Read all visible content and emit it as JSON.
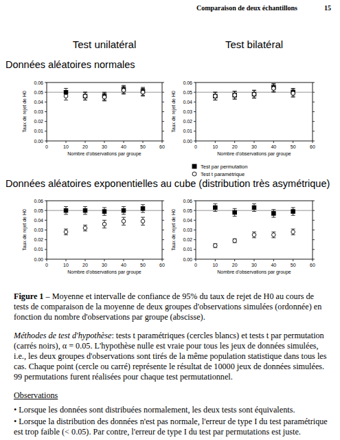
{
  "header": {
    "title": "Comparaison de deux échantillons",
    "page": "15"
  },
  "column_titles": [
    "Test unilatéral",
    "Test bilatéral"
  ],
  "section_titles": [
    "Données aléatoires normales",
    "Données aléatoires exponentielles au cube (distribution très asymétrique)"
  ],
  "chart_data": [
    {
      "type": "scatter",
      "x_label": "Nombre d'observations par groupe",
      "y_label": "Taux de rejet de H0",
      "x": [
        10,
        20,
        30,
        40,
        50
      ],
      "xlim": [
        0,
        60
      ],
      "xticks": [
        0,
        10,
        20,
        30,
        40,
        50,
        60
      ],
      "ylim": [
        0,
        0.06
      ],
      "yticks": [
        {
          "value": 0,
          "label": "0.00"
        },
        {
          "value": 0.01,
          "label": "0.01"
        },
        {
          "value": 0.02,
          "label": "0.02"
        },
        {
          "value": 0.03,
          "label": "0.03"
        },
        {
          "value": 0.04,
          "label": "0.04"
        },
        {
          "value": 0.05,
          "label": "0.05"
        },
        {
          "value": 0.06,
          "label": "0.06"
        }
      ],
      "reference_line": 0.05,
      "series": [
        {
          "name": "Test par permutation",
          "color": "#000000",
          "marker": "square",
          "values": [
            0.05,
            0.046,
            0.046,
            0.053,
            0.051
          ],
          "error": [
            0.004,
            0.004,
            0.004,
            0.004,
            0.004
          ]
        },
        {
          "name": "Test t paramétrique",
          "color": "#ffffff",
          "marker": "circle",
          "values": [
            0.046,
            0.046,
            0.045,
            0.052,
            0.05
          ],
          "error": [
            0.004,
            0.004,
            0.004,
            0.004,
            0.004
          ]
        }
      ]
    },
    {
      "type": "scatter",
      "x_label": "Nombre d'observations par groupe",
      "y_label": "Taux de rejet de H0",
      "x": [
        10,
        20,
        30,
        40,
        50
      ],
      "xlim": [
        0,
        60
      ],
      "xticks": [
        0,
        10,
        20,
        30,
        40,
        50,
        60
      ],
      "ylim": [
        0,
        0.06
      ],
      "yticks": [
        {
          "value": 0,
          "label": "0.00"
        },
        {
          "value": 0.01,
          "label": "0.01"
        },
        {
          "value": 0.02,
          "label": "0.02"
        },
        {
          "value": 0.03,
          "label": "0.03"
        },
        {
          "value": 0.04,
          "label": "0.04"
        },
        {
          "value": 0.05,
          "label": "0.05"
        },
        {
          "value": 0.06,
          "label": "0.06"
        }
      ],
      "reference_line": 0.05,
      "series": [
        {
          "color": "#000000",
          "marker": "square",
          "values": [
            0.046,
            0.047,
            0.048,
            0.055,
            0.05
          ],
          "error": [
            0.004,
            0.004,
            0.004,
            0.004,
            0.004
          ]
        },
        {
          "color": "#ffffff",
          "marker": "circle",
          "values": [
            0.046,
            0.047,
            0.048,
            0.054,
            0.049
          ],
          "error": [
            0.004,
            0.004,
            0.004,
            0.004,
            0.004
          ]
        }
      ]
    },
    {
      "type": "scatter",
      "x_label": "Nombre d'observations par groupe",
      "y_label": "Taux de rejet de H0",
      "x": [
        10,
        20,
        30,
        40,
        50
      ],
      "xlim": [
        0,
        60
      ],
      "xticks": [
        0,
        10,
        20,
        30,
        40,
        50,
        60
      ],
      "ylim": [
        0,
        0.06
      ],
      "yticks": [
        {
          "value": 0,
          "label": "0.00"
        },
        {
          "value": 0.01,
          "label": "0.01"
        },
        {
          "value": 0.02,
          "label": "0.02"
        },
        {
          "value": 0.03,
          "label": "0.03"
        },
        {
          "value": 0.04,
          "label": "0.04"
        },
        {
          "value": 0.05,
          "label": "0.05"
        },
        {
          "value": 0.06,
          "label": "0.06"
        }
      ],
      "reference_line": 0.05,
      "series": [
        {
          "color": "#000000",
          "marker": "square",
          "values": [
            0.05,
            0.05,
            0.049,
            0.05,
            0.052
          ],
          "error": [
            0.004,
            0.004,
            0.004,
            0.004,
            0.004
          ]
        },
        {
          "color": "#ffffff",
          "marker": "circle",
          "values": [
            0.028,
            0.032,
            0.036,
            0.039,
            0.039
          ],
          "error": [
            0.003,
            0.003,
            0.004,
            0.004,
            0.004
          ]
        }
      ]
    },
    {
      "type": "scatter",
      "x_label": "Nombre d'observations par groupe",
      "y_label": "Taux de rejet de H0",
      "x": [
        10,
        20,
        30,
        40,
        50
      ],
      "xlim": [
        0,
        60
      ],
      "xticks": [
        0,
        10,
        20,
        30,
        40,
        50,
        60
      ],
      "ylim": [
        0,
        0.06
      ],
      "yticks": [
        {
          "value": 0,
          "label": "0.00"
        },
        {
          "value": 0.01,
          "label": "0.01"
        },
        {
          "value": 0.02,
          "label": "0.02"
        },
        {
          "value": 0.03,
          "label": "0.03"
        },
        {
          "value": 0.04,
          "label": "0.04"
        },
        {
          "value": 0.05,
          "label": "0.05"
        },
        {
          "value": 0.06,
          "label": "0.06"
        }
      ],
      "reference_line": 0.05,
      "series": [
        {
          "color": "#000000",
          "marker": "square",
          "values": [
            0.053,
            0.048,
            0.053,
            0.047,
            0.049
          ],
          "error": [
            0.004,
            0.004,
            0.004,
            0.004,
            0.004
          ]
        },
        {
          "color": "#ffffff",
          "marker": "circle",
          "values": [
            0.014,
            0.019,
            0.025,
            0.025,
            0.028
          ],
          "error": [
            0.002,
            0.002,
            0.003,
            0.003,
            0.003
          ]
        }
      ]
    }
  ],
  "caption": {
    "label": "Figure 1",
    "text": " – Moyenne et intervalle de confiance de 95% du taux de rejet de H0 au cours de tests de comparaison de la moyenne de deux groupes d'observations simulées (ordonnée) en fonction du nombre d'observations par groupe (abscisse)."
  },
  "methods": {
    "label": "Méthodes de test d'hypothèse",
    "text": ": tests t paramétriques (cercles blancs) et tests t par permutation (carrés noirs), α = 0.05. L'hypothèse nulle est vraie pour tous les jeux de données simulées, i.e., les deux groupes d'observations sont tirés de la même population statistique dans tous les cas. Chaque point (cercle ou carré) représente le résultat de 10000 jeux de données simulées. 99 permutations furent réalisées pour chaque test permutationnel."
  },
  "observations": {
    "title": "Observations",
    "items": [
      "• Lorsque les données sont distribuées normalement, les deux tests sont équivalents.",
      "• Lorsque la distribution des données n'est pas normale, l'erreur de type I du test paramétrique est trop faible (< 0.05). Par contre, l'erreur de type I du test par permutations est juste."
    ]
  }
}
